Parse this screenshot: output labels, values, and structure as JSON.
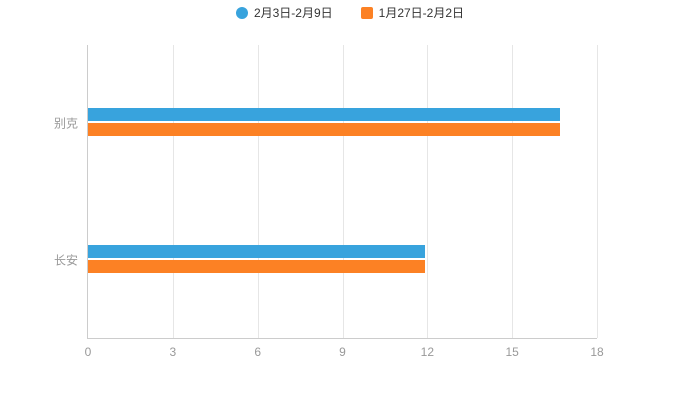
{
  "chart_data": {
    "type": "bar",
    "orientation": "horizontal",
    "title": "",
    "xlabel": "",
    "ylabel": "",
    "categories": [
      "别克",
      "长安"
    ],
    "series": [
      {
        "name": "2月3日-2月9日",
        "color": "#38a3dd",
        "values": [
          16.7,
          11.9
        ]
      },
      {
        "name": "1月27日-2月2日",
        "color": "#fc8124",
        "values": [
          16.7,
          11.9
        ]
      }
    ],
    "xlim": [
      0,
      18
    ],
    "xticks": [
      0,
      3,
      6,
      9,
      12,
      15,
      18
    ],
    "grid": true,
    "legend_position": "top",
    "colors": {
      "axis_line": "#cccccc",
      "grid_line": "#e6e6e6",
      "tick_text": "#999999",
      "legend_text": "#333333",
      "background": "#ffffff"
    }
  }
}
